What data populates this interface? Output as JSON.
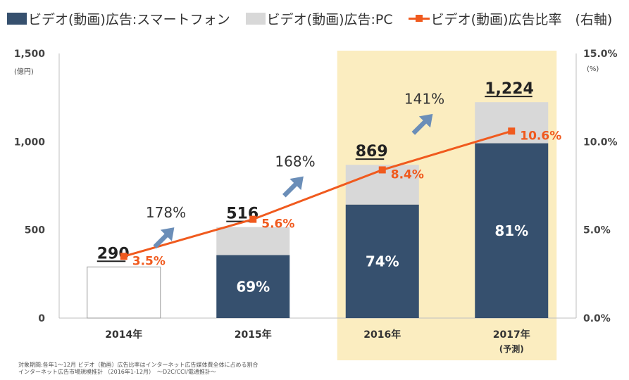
{
  "legend": {
    "smartphone": "ビデオ(動画)広告:スマートフォン",
    "pc": "ビデオ(動画)広告:PC",
    "ratio": "ビデオ(動画)広告比率　(右軸)"
  },
  "axes": {
    "left_unit": "(億円)",
    "right_unit": "(%)",
    "left_title": "1,500",
    "right_title": "15.0%"
  },
  "footnote": {
    "line1": "対象期間:各年1～12月 ビデオ（動画）広告比率はインターネット広告媒体費全体に占める割合",
    "line2": "インターネット広告市場規模推計 （2016年1-12月）　～D2C/CCI/電通推計～"
  },
  "colors": {
    "smartphone": "#36506e",
    "pc": "#d8d8d8",
    "ratio": "#f05a1e",
    "highlight": "#fbedc0",
    "arrow": "#6b8eb8"
  },
  "chart_data": {
    "type": "bar",
    "categories": [
      "2014年",
      "2015年",
      "2016年",
      "2017年"
    ],
    "category_notes": [
      "",
      "",
      "",
      "(予測)"
    ],
    "highlighted_categories": [
      "2016年",
      "2017年"
    ],
    "series": [
      {
        "name": "ビデオ(動画)広告:スマートフォン",
        "values": [
          null,
          357,
          643,
          991
        ]
      },
      {
        "name": "ビデオ(動画)広告:PC",
        "values": [
          null,
          159,
          226,
          233
        ]
      },
      {
        "name": "ビデオ(動画)広告比率　(右軸)",
        "type": "line",
        "axis": "right",
        "values": [
          3.5,
          5.6,
          8.4,
          10.6
        ]
      }
    ],
    "totals": [
      290,
      516,
      869,
      1224
    ],
    "total_labels": [
      "290",
      "516",
      "869",
      "1,224"
    ],
    "smartphone_share_labels": [
      "",
      "69%",
      "74%",
      "81%"
    ],
    "ratio_labels": [
      "3.5%",
      "5.6%",
      "8.4%",
      "10.6%"
    ],
    "growth_labels": [
      "178%",
      "168%",
      "141%"
    ],
    "left_axis": {
      "ylim": [
        0,
        1500
      ],
      "ticks": [
        0,
        500,
        1000,
        1500
      ],
      "tick_labels": [
        "0",
        "500",
        "1,000",
        "1,500"
      ]
    },
    "right_axis": {
      "ylim": [
        0,
        15
      ],
      "ticks": [
        0,
        5,
        10,
        15
      ],
      "tick_labels": [
        "0.0%",
        "5.0%",
        "10.0%",
        "15.0%"
      ]
    },
    "grid": false,
    "legend_position": "top-left"
  }
}
